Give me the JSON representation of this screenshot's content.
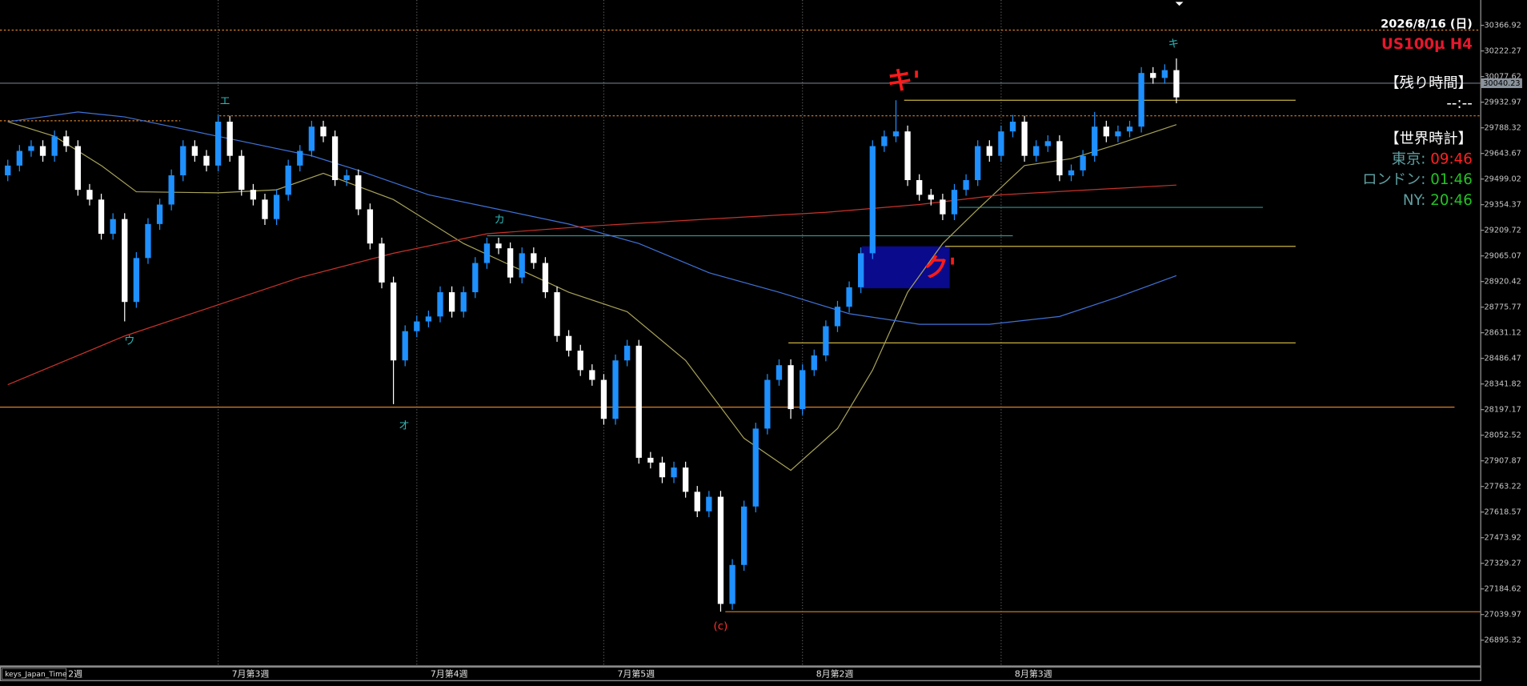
{
  "chart_data": {
    "type": "candlestick",
    "up_color": "#1e90ff",
    "down_color": "#ffffff",
    "xlim": [
      -0.667,
      126
    ],
    "ylim": [
      26752,
      30510
    ],
    "yticks": [
      30366.92,
      30222.27,
      30077.62,
      29932.97,
      29788.32,
      29643.67,
      29499.02,
      29354.37,
      29209.72,
      29065.07,
      28920.42,
      28775.77,
      28631.12,
      28486.47,
      28341.82,
      28197.17,
      28052.52,
      27907.87,
      27763.22,
      27618.57,
      27473.92,
      27329.27,
      27184.62,
      27039.97,
      26895.32
    ],
    "categories": [
      null,
      null,
      null,
      null,
      "2週",
      null,
      null,
      null,
      null,
      null,
      null,
      null,
      null,
      null,
      null,
      null,
      null,
      null,
      "7月第3週",
      null,
      null,
      null,
      null,
      null,
      null,
      null,
      null,
      null,
      null,
      null,
      null,
      null,
      null,
      null,
      null,
      "7月第4週",
      null,
      null,
      null,
      null,
      null,
      null,
      null,
      null,
      null,
      null,
      null,
      null,
      null,
      null,
      null,
      "7月第5週",
      null,
      null,
      null,
      null,
      null,
      null,
      null,
      null,
      null,
      null,
      null,
      null,
      null,
      null,
      null,
      null,
      "8月第2週",
      null,
      null,
      null,
      null,
      null,
      null,
      null,
      null,
      null,
      null,
      null,
      null,
      null,
      null,
      null,
      null,
      "8月第3週",
      null,
      null,
      null,
      null,
      null,
      null,
      null,
      null,
      null,
      null,
      null,
      null,
      null,
      null,
      null
    ],
    "ohlc": [
      [
        29520,
        29608,
        29487,
        29575
      ],
      [
        29575,
        29691,
        29542,
        29658
      ],
      [
        29658,
        29718,
        29625,
        29685
      ],
      [
        29685,
        29718,
        29597,
        29630
      ],
      [
        29630,
        29773,
        29597,
        29740
      ],
      [
        29740,
        29773,
        29652,
        29685
      ],
      [
        29685,
        29718,
        29405,
        29438
      ],
      [
        29438,
        29471,
        29350,
        29383
      ],
      [
        29383,
        29416,
        29157,
        29190
      ],
      [
        29190,
        29306,
        29157,
        29273
      ],
      [
        29273,
        29306,
        28695,
        28805
      ],
      [
        28805,
        29086,
        28772,
        29053
      ],
      [
        29053,
        29278,
        29020,
        29245
      ],
      [
        29245,
        29388,
        29212,
        29355
      ],
      [
        29355,
        29553,
        29322,
        29520
      ],
      [
        29520,
        29718,
        29487,
        29685
      ],
      [
        29685,
        29718,
        29597,
        29630
      ],
      [
        29630,
        29663,
        29542,
        29575
      ],
      [
        29575,
        29861,
        29542,
        29823
      ],
      [
        29823,
        29856,
        29597,
        29630
      ],
      [
        29630,
        29663,
        29405,
        29438
      ],
      [
        29438,
        29471,
        29350,
        29383
      ],
      [
        29383,
        29416,
        29240,
        29273
      ],
      [
        29273,
        29443,
        29240,
        29410
      ],
      [
        29410,
        29608,
        29377,
        29575
      ],
      [
        29575,
        29691,
        29542,
        29658
      ],
      [
        29658,
        29828,
        29625,
        29795
      ],
      [
        29795,
        29828,
        29707,
        29740
      ],
      [
        29740,
        29773,
        29460,
        29493
      ],
      [
        29493,
        29553,
        29460,
        29520
      ],
      [
        29520,
        29553,
        29295,
        29328
      ],
      [
        29328,
        29361,
        29102,
        29135
      ],
      [
        29135,
        29168,
        28882,
        28915
      ],
      [
        28915,
        28948,
        28228,
        28475
      ],
      [
        28475,
        28673,
        28442,
        28640
      ],
      [
        28640,
        28728,
        28607,
        28695
      ],
      [
        28695,
        28756,
        28662,
        28723
      ],
      [
        28723,
        28893,
        28690,
        28860
      ],
      [
        28860,
        28893,
        28717,
        28750
      ],
      [
        28750,
        28893,
        28717,
        28860
      ],
      [
        28860,
        29058,
        28827,
        29025
      ],
      [
        29025,
        29168,
        28992,
        29135
      ],
      [
        29135,
        29168,
        29075,
        29108
      ],
      [
        29108,
        29141,
        28910,
        28943
      ],
      [
        28943,
        29113,
        28910,
        29080
      ],
      [
        29080,
        29113,
        28992,
        29025
      ],
      [
        29025,
        29058,
        28827,
        28860
      ],
      [
        28860,
        28893,
        28580,
        28613
      ],
      [
        28613,
        28646,
        28497,
        28530
      ],
      [
        28530,
        28563,
        28387,
        28420
      ],
      [
        28420,
        28453,
        28332,
        28365
      ],
      [
        28365,
        28398,
        28112,
        28145
      ],
      [
        28145,
        28508,
        28112,
        28475
      ],
      [
        28475,
        28591,
        28442,
        28558
      ],
      [
        28558,
        28591,
        27892,
        27925
      ],
      [
        27925,
        27958,
        27865,
        27898
      ],
      [
        27898,
        27931,
        27782,
        27815
      ],
      [
        27815,
        27903,
        27782,
        27870
      ],
      [
        27870,
        27903,
        27700,
        27733
      ],
      [
        27733,
        27766,
        27590,
        27623
      ],
      [
        27623,
        27738,
        27590,
        27705
      ],
      [
        27705,
        27738,
        27056,
        27100
      ],
      [
        27100,
        27353,
        27067,
        27320
      ],
      [
        27320,
        27683,
        27287,
        27650
      ],
      [
        27650,
        28123,
        27617,
        28090
      ],
      [
        28090,
        28398,
        28057,
        28365
      ],
      [
        28365,
        28481,
        28332,
        28448
      ],
      [
        28448,
        28481,
        28145,
        28200
      ],
      [
        28200,
        28453,
        28167,
        28420
      ],
      [
        28420,
        28536,
        28387,
        28503
      ],
      [
        28503,
        28701,
        28470,
        28668
      ],
      [
        28668,
        28811,
        28635,
        28778
      ],
      [
        28778,
        28921,
        28745,
        28888
      ],
      [
        28888,
        29113,
        28855,
        29080
      ],
      [
        29080,
        29718,
        29047,
        29685
      ],
      [
        29685,
        29773,
        29652,
        29740
      ],
      [
        29740,
        29944,
        29707,
        29768
      ],
      [
        29768,
        29801,
        29460,
        29493
      ],
      [
        29493,
        29526,
        29377,
        29410
      ],
      [
        29410,
        29443,
        29350,
        29383
      ],
      [
        29383,
        29416,
        29267,
        29300
      ],
      [
        29300,
        29471,
        29267,
        29438
      ],
      [
        29438,
        29526,
        29405,
        29493
      ],
      [
        29493,
        29718,
        29460,
        29685
      ],
      [
        29685,
        29718,
        29597,
        29630
      ],
      [
        29630,
        29801,
        29597,
        29768
      ],
      [
        29768,
        29861,
        29735,
        29823
      ],
      [
        29823,
        29856,
        29597,
        29630
      ],
      [
        29630,
        29718,
        29597,
        29685
      ],
      [
        29685,
        29746,
        29652,
        29713
      ],
      [
        29713,
        29746,
        29487,
        29520
      ],
      [
        29520,
        29581,
        29487,
        29548
      ],
      [
        29548,
        29663,
        29515,
        29630
      ],
      [
        29630,
        29878,
        29597,
        29795
      ],
      [
        29795,
        29828,
        29707,
        29740
      ],
      [
        29740,
        29801,
        29707,
        29768
      ],
      [
        29768,
        29828,
        29735,
        29795
      ],
      [
        29795,
        30131,
        29762,
        30098
      ],
      [
        30098,
        30131,
        30037,
        30070
      ],
      [
        30070,
        30147,
        30037,
        30114
      ],
      [
        30114,
        30180,
        29927,
        29960
      ]
    ],
    "moving_averages": [
      {
        "color": "#a8a35a",
        "x": [
          0,
          4,
          8,
          11,
          18,
          23,
          27,
          33,
          39,
          48,
          53,
          58,
          63,
          67,
          71,
          74,
          77,
          80,
          83,
          87,
          91,
          95,
          100
        ],
        "values": [
          29823,
          29740,
          29575,
          29427,
          29421,
          29438,
          29531,
          29383,
          29135,
          28860,
          28750,
          28475,
          28035,
          27854,
          28090,
          28420,
          28860,
          29135,
          29328,
          29575,
          29614,
          29696,
          29806
        ]
      },
      {
        "color": "#3f72d8",
        "x": [
          0,
          6,
          10,
          18,
          26,
          30,
          36,
          42,
          48,
          54,
          60,
          66,
          72,
          78,
          84,
          90,
          95,
          100
        ],
        "values": [
          29823,
          29878,
          29850,
          29740,
          29630,
          29548,
          29410,
          29328,
          29245,
          29135,
          28970,
          28860,
          28739,
          28679,
          28679,
          28723,
          28833,
          28954
        ]
      },
      {
        "color": "#c8332b",
        "x": [
          0,
          10,
          20,
          25,
          33,
          41,
          50,
          60,
          70,
          78,
          85,
          100
        ],
        "values": [
          28338,
          28613,
          28833,
          28943,
          29080,
          29190,
          29234,
          29273,
          29311,
          29355,
          29410,
          29465
        ]
      }
    ],
    "levels": [
      {
        "value": 30340,
        "color": "#d9822b",
        "dash": true,
        "x": [
          -0.667,
          126
        ]
      },
      {
        "value": 29828,
        "color": "#d9822b",
        "dash": true,
        "x": [
          -0.667,
          14.75
        ]
      },
      {
        "value": 29856,
        "color": "#d9822b",
        "dash": true,
        "x": [
          18.1,
          126
        ]
      },
      {
        "value": 29944,
        "color": "#c9b23e",
        "dash": false,
        "x": [
          76.7,
          110.2
        ]
      },
      {
        "value": 29339,
        "color": "#3a8f8f",
        "dash": false,
        "x": [
          81.4,
          107.4
        ]
      },
      {
        "value": 29179,
        "color": "#3a8f8f",
        "dash": false,
        "x": [
          41,
          86
        ]
      },
      {
        "value": 29119,
        "color": "#c9b23e",
        "dash": false,
        "x": [
          80.2,
          110.2
        ]
      },
      {
        "value": 28574,
        "color": "#c9b23e",
        "dash": false,
        "x": [
          66.8,
          110.2
        ]
      },
      {
        "value": 28211,
        "color": "#d9822b",
        "dash": false,
        "x": [
          -0.667,
          123.8
        ]
      },
      {
        "value": 27056,
        "color": "#d9822b",
        "dash": false,
        "x": [
          61.4,
          126
        ]
      }
    ],
    "zones": [
      {
        "color": "#0a0a8c",
        "x": [
          73.1,
          80.6
        ],
        "y": [
          28882,
          29119
        ]
      }
    ],
    "current_price": 30040.23,
    "annotations": [
      {
        "text": "ウ"
      },
      {
        "text": "エ"
      },
      {
        "text": "オ"
      },
      {
        "text": "カ"
      },
      {
        "text": "キ"
      },
      {
        "text": "(c)"
      },
      {
        "text": "キ'"
      },
      {
        "text": "ク'"
      }
    ],
    "indicator_label": "keys_Japan_Time"
  },
  "panel": {
    "date": "2026/8/16 (日)",
    "symbol": "US100µ H4",
    "remaining_title": "【残り時間】",
    "remaining": "--:--",
    "clock_title": "【世界時計】",
    "clocks": [
      {
        "city": "東京:",
        "time": "09:46"
      },
      {
        "city": "ロンドン:",
        "time": "01:46"
      },
      {
        "city": "NY:",
        "time": "20:46"
      }
    ]
  }
}
